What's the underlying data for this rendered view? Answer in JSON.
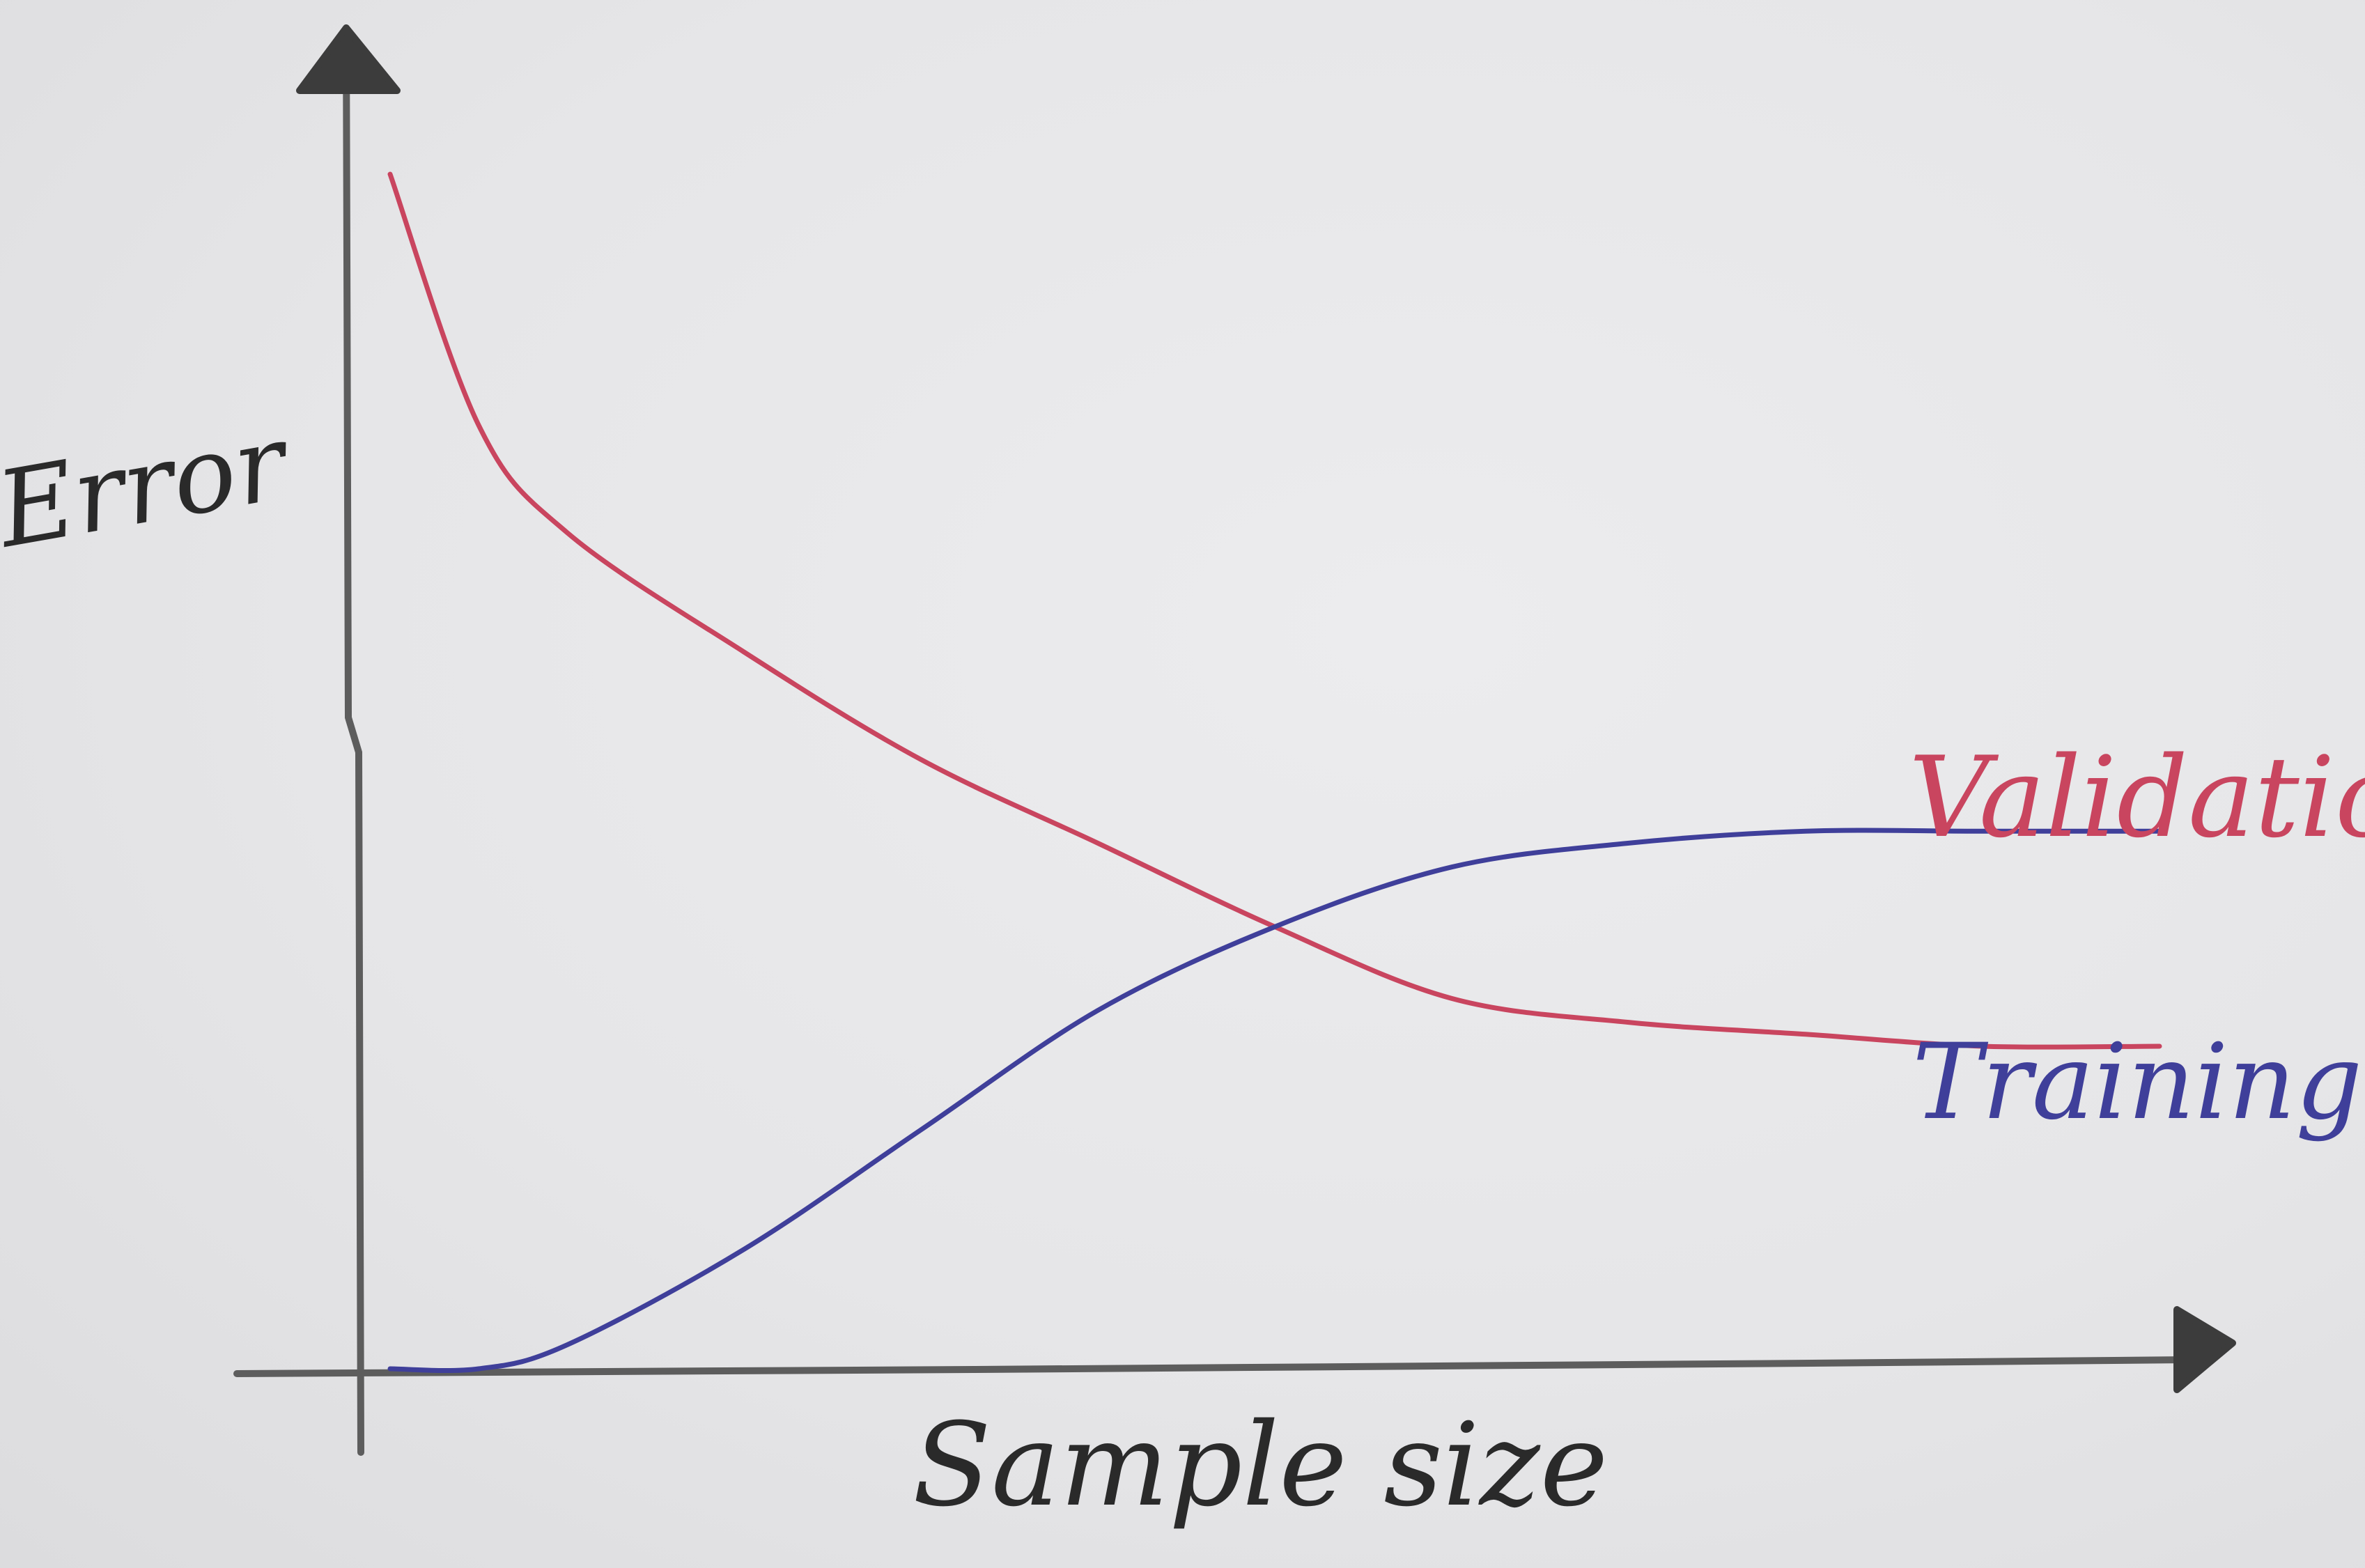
{
  "chart_data": {
    "type": "line",
    "xlabel": "Sample size",
    "ylabel": "Error",
    "x": [
      0,
      0.05,
      0.1,
      0.2,
      0.3,
      0.4,
      0.5,
      0.6,
      0.7,
      0.8,
      0.9,
      1.0
    ],
    "series": [
      {
        "name": "Validation",
        "color": "#c9455f",
        "values": [
          1.0,
          0.79,
          0.7,
          0.6,
          0.51,
          0.44,
          0.37,
          0.31,
          0.29,
          0.28,
          0.27,
          0.27
        ]
      },
      {
        "name": "Training",
        "color": "#3f3f9a",
        "values": [
          0.0,
          0.0,
          0.02,
          0.1,
          0.2,
          0.3,
          0.37,
          0.42,
          0.44,
          0.45,
          0.45,
          0.45
        ]
      }
    ],
    "xlim": [
      0,
      1
    ],
    "ylim": [
      0,
      1.1
    ],
    "grid": false,
    "legend": "inline labels at right end of each curve",
    "axis_color": "#5a5a5a"
  }
}
